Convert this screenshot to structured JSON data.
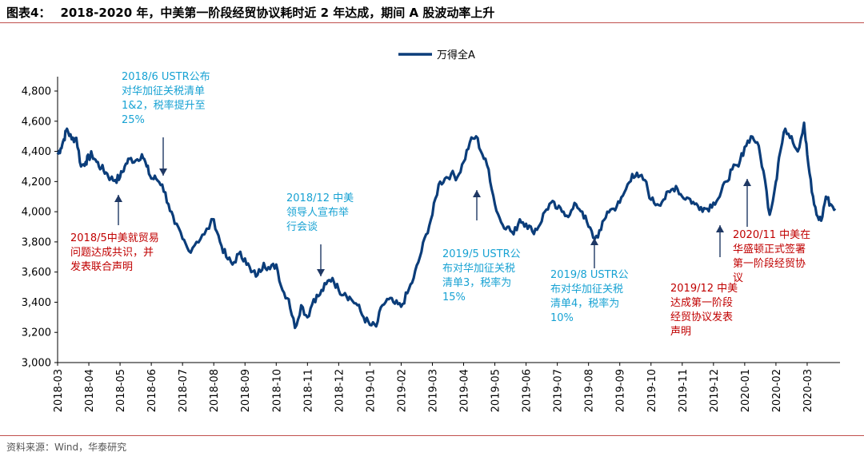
{
  "figure": {
    "number": "图表4：",
    "title": "2018-2020 年，中美第一阶段经贸协议耗时近 2 年达成，期间 A 股波动率上升",
    "source": "资料来源：Wind，华泰研究"
  },
  "colors": {
    "line": "#0b3d7a",
    "rule": "#c0504d",
    "blue_note": "#17a2d3",
    "red_note": "#c00000"
  },
  "chart_data": {
    "type": "line",
    "title": "",
    "xlabel": "",
    "ylabel": "",
    "ylim": [
      3000,
      4800
    ],
    "yticks": [
      3000,
      3200,
      3400,
      3600,
      3800,
      4000,
      4200,
      4400,
      4600,
      4800
    ],
    "ytick_labels": [
      "3,000",
      "3,200",
      "3,400",
      "3,600",
      "3,800",
      "4,000",
      "4,200",
      "4,400",
      "4,600",
      "4,800"
    ],
    "xlim": [
      "2018-03",
      "2020-03"
    ],
    "xtick_labels": [
      "2018-03",
      "2018-04",
      "2018-05",
      "2018-06",
      "2018-07",
      "2018-08",
      "2018-09",
      "2018-10",
      "2018-11",
      "2018-12",
      "2019-01",
      "2019-02",
      "2019-03",
      "2019-04",
      "2019-05",
      "2019-06",
      "2019-07",
      "2019-08",
      "2019-09",
      "2019-10",
      "2019-11",
      "2019-12",
      "2020-01",
      "2020-02",
      "2020-03"
    ],
    "grid": false,
    "legend_position": "top-center",
    "series": [
      {
        "name": "万得全A",
        "x": [
          "2018-03",
          "2018-03.1",
          "2018-03.2",
          "2018-03.3",
          "2018-03.45",
          "2018-03.6",
          "2018-03.75",
          "2018-03.9",
          "2018-04.0",
          "2018-04.1",
          "2018-04.25",
          "2018-04.4",
          "2018-04.55",
          "2018-04.7",
          "2018-04.85",
          "2018-05.0",
          "2018-05.15",
          "2018-05.3",
          "2018-05.5",
          "2018-05.7",
          "2018-05.85",
          "2018-06.0",
          "2018-06.15",
          "2018-06.35",
          "2018-06.55",
          "2018-06.75",
          "2018-07.0",
          "2018-07.2",
          "2018-07.45",
          "2018-07.7",
          "2018-08.0",
          "2018-08.2",
          "2018-08.4",
          "2018-08.6",
          "2018-08.8",
          "2018-09.0",
          "2018-09.2",
          "2018-09.4",
          "2018-09.6",
          "2018-09.8",
          "2018-10.0",
          "2018-10.2",
          "2018-10.4",
          "2018-10.6",
          "2018-10.8",
          "2018-11.0",
          "2018-11.2",
          "2018-11.4",
          "2018-11.6",
          "2018-11.8",
          "2018-12.0",
          "2018-12.2",
          "2018-12.4",
          "2018-12.6",
          "2018-12.8",
          "2019-01.0",
          "2019-01.2",
          "2019-01.4",
          "2019-01.6",
          "2019-01.8",
          "2019-02.0",
          "2019-02.2",
          "2019-02.4",
          "2019-02.6",
          "2019-02.8",
          "2019-03.0",
          "2019-03.2",
          "2019-03.4",
          "2019-03.6",
          "2019-03.8",
          "2019-04.0",
          "2019-04.2",
          "2019-04.4",
          "2019-04.6",
          "2019-04.8",
          "2019-05.0",
          "2019-05.2",
          "2019-05.4",
          "2019-05.6",
          "2019-05.8",
          "2019-06.0",
          "2019-06.2",
          "2019-06.4",
          "2019-06.6",
          "2019-06.8",
          "2019-07.0",
          "2019-07.2",
          "2019-07.4",
          "2019-07.6",
          "2019-07.8",
          "2019-08.0",
          "2019-08.2",
          "2019-08.4",
          "2019-08.6",
          "2019-08.8",
          "2019-09.0",
          "2019-09.2",
          "2019-09.4",
          "2019-09.6",
          "2019-09.8",
          "2019-10.0",
          "2019-10.2",
          "2019-10.4",
          "2019-10.6",
          "2019-10.8",
          "2019-11.0",
          "2019-11.2",
          "2019-11.4",
          "2019-11.6",
          "2019-11.8",
          "2019-12.0",
          "2019-12.2",
          "2019-12.4",
          "2019-12.6",
          "2019-12.8",
          "2020-01.0",
          "2020-01.2",
          "2020-01.4",
          "2020-01.6",
          "2020-01.8",
          "2020-02.0",
          "2020-02.1",
          "2020-02.3",
          "2020-02.5",
          "2020-02.7",
          "2020-02.9",
          "2020-03.0",
          "2020-03.15",
          "2020-03.3",
          "2020-03.45",
          "2020-03.6",
          "2020-03.75",
          "2020-03.9"
        ],
        "t": [
          0,
          0.1,
          0.2,
          0.3,
          0.45,
          0.6,
          0.75,
          0.9,
          1.0,
          1.1,
          1.25,
          1.4,
          1.55,
          1.7,
          1.85,
          2.0,
          2.15,
          2.3,
          2.5,
          2.7,
          2.85,
          3.0,
          3.15,
          3.35,
          3.55,
          3.75,
          4.0,
          4.2,
          4.45,
          4.7,
          5.0,
          5.2,
          5.4,
          5.6,
          5.8,
          6.0,
          6.2,
          6.4,
          6.6,
          6.8,
          7.0,
          7.2,
          7.4,
          7.6,
          7.8,
          8.0,
          8.2,
          8.4,
          8.6,
          8.8,
          9.0,
          9.2,
          9.4,
          9.6,
          9.8,
          10.0,
          10.2,
          10.4,
          10.6,
          10.8,
          11.0,
          11.2,
          11.4,
          11.6,
          11.8,
          12.0,
          12.2,
          12.4,
          12.6,
          12.8,
          13.0,
          13.2,
          13.4,
          13.6,
          13.8,
          14.0,
          14.2,
          14.4,
          14.6,
          14.8,
          15.0,
          15.2,
          15.4,
          15.6,
          15.8,
          16.0,
          16.2,
          16.4,
          16.6,
          16.8,
          17.0,
          17.2,
          17.4,
          17.6,
          17.8,
          18.0,
          18.2,
          18.4,
          18.6,
          18.8,
          19.0,
          19.2,
          19.4,
          19.6,
          19.8,
          20.0,
          20.2,
          20.4,
          20.6,
          20.8,
          21.0,
          21.2,
          21.4,
          21.6,
          21.8,
          22.0,
          22.2,
          22.4,
          22.6,
          22.8,
          23.0,
          23.1,
          23.3,
          23.5,
          23.7,
          23.9,
          24.0,
          24.15,
          24.3,
          24.45,
          24.6,
          24.75,
          24.9
        ],
        "values": [
          4380,
          4420,
          4480,
          4550,
          4480,
          4490,
          4300,
          4330,
          4360,
          4380,
          4330,
          4290,
          4260,
          4220,
          4210,
          4230,
          4300,
          4350,
          4340,
          4380,
          4300,
          4220,
          4220,
          4180,
          4050,
          3920,
          3820,
          3740,
          3800,
          3850,
          3950,
          3800,
          3700,
          3650,
          3720,
          3690,
          3600,
          3580,
          3660,
          3620,
          3650,
          3480,
          3420,
          3230,
          3380,
          3300,
          3420,
          3450,
          3520,
          3560,
          3480,
          3460,
          3420,
          3380,
          3300,
          3250,
          3240,
          3380,
          3420,
          3390,
          3370,
          3460,
          3560,
          3700,
          3850,
          3980,
          4180,
          4220,
          4250,
          4230,
          4330,
          4460,
          4500,
          4380,
          4280,
          4050,
          3930,
          3900,
          3850,
          3950,
          3920,
          3870,
          3900,
          4000,
          4060,
          4020,
          4000,
          3980,
          4050,
          4000,
          3900,
          3820,
          3880,
          4000,
          4020,
          4060,
          4150,
          4250,
          4230,
          4210,
          4080,
          4050,
          4080,
          4130,
          4170,
          4100,
          4090,
          4050,
          4030,
          4020,
          4060,
          4100,
          4200,
          4280,
          4300,
          4430,
          4500,
          4460,
          4270,
          3980,
          4200,
          4360,
          4550,
          4500,
          4400,
          4590,
          4380,
          4130,
          3980,
          3940,
          4100,
          4050,
          4020
        ],
        "tmax": 25
      }
    ],
    "annotations": [
      {
        "lines": [
          "2018/6 USTR公布",
          "对华加征关税清单",
          "1&2，税率提升至",
          "25%"
        ],
        "color": "blue"
      },
      {
        "lines": [
          "2018/5中美就贸易",
          "问题达成共识，并",
          "发表联合声明"
        ],
        "color": "red"
      },
      {
        "lines": [
          "2018/12 中美",
          "领导人宣布举",
          "行会谈"
        ],
        "color": "blue"
      },
      {
        "lines": [
          "2019/5 USTR公",
          "布对华加征关税",
          "清单3，税率为",
          "15%"
        ],
        "color": "blue"
      },
      {
        "lines": [
          "2019/8 USTR公",
          "布对华加征关税",
          "清单4，税率为",
          "10%"
        ],
        "color": "blue"
      },
      {
        "lines": [
          "2019/12 中美",
          "达成第一阶段",
          "经贸协议发表",
          "声明"
        ],
        "color": "red"
      },
      {
        "lines": [
          "2020/11 中美在",
          "华盛顿正式签署",
          "第一阶段经贸协",
          "议"
        ],
        "color": "red"
      }
    ]
  }
}
